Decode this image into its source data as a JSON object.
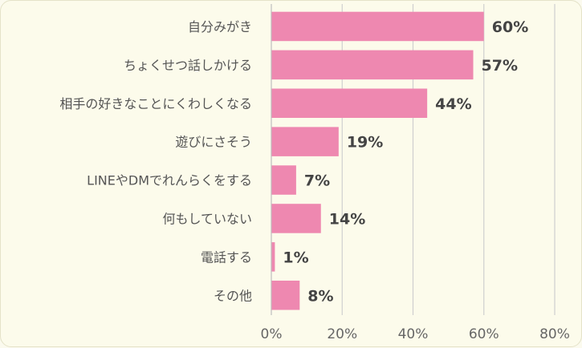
{
  "chart_data": {
    "type": "bar",
    "orientation": "horizontal",
    "categories": [
      "自分みがき",
      "ちょくせつ話しかける",
      "相手の好きなことにくわしくなる",
      "遊びにさそう",
      "LINEやDMでれんらくをする",
      "何もしていない",
      "電話する",
      "その他"
    ],
    "values": [
      60,
      57,
      44,
      19,
      7,
      14,
      1,
      8
    ],
    "value_labels": [
      "60%",
      "57%",
      "44%",
      "19%",
      "7%",
      "14%",
      "1%",
      "8%"
    ],
    "xlim": [
      0,
      80
    ],
    "x_ticks": [
      0,
      20,
      40,
      60,
      80
    ],
    "x_tick_labels": [
      "0%",
      "20%",
      "40%",
      "60%",
      "80%"
    ],
    "grid": true,
    "bar_color": "#ee88b0",
    "background_color": "#fcfbeb"
  }
}
